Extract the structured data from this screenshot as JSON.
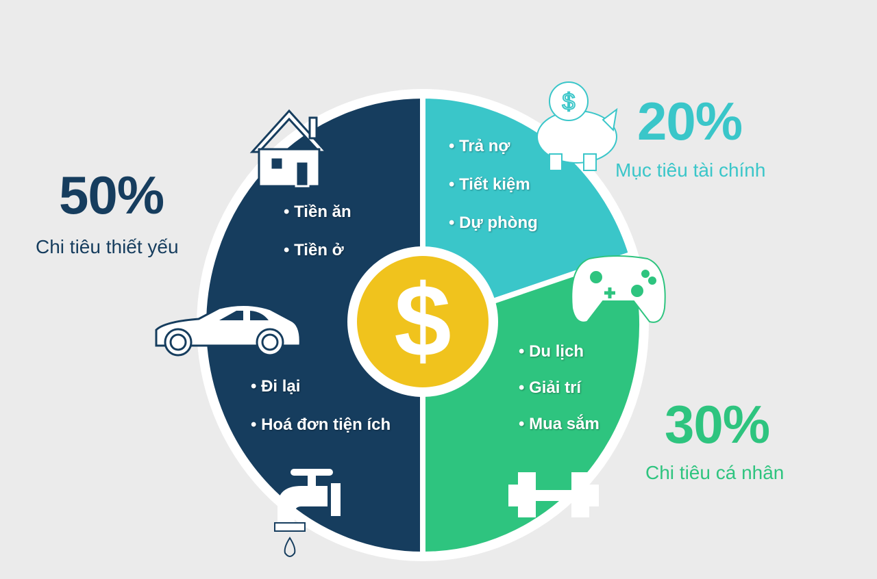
{
  "colors": {
    "background": "#ebebeb",
    "yellow": "#f0c31d",
    "navy": "#163d5e",
    "teal": "#3ac6c9",
    "green": "#2ec47f"
  },
  "chart_data": {
    "type": "pie",
    "start": "top",
    "direction": "clockwise",
    "slices": [
      {
        "label": "Mục tiêu tài chính",
        "value": 20,
        "value_label": "20%",
        "color": "#3ac6c9",
        "items": [
          "Trả nợ",
          "Tiết kiệm",
          "Dự phòng"
        ],
        "icons": [
          "piggy-bank-icon"
        ]
      },
      {
        "label": "Chi tiêu cá nhân",
        "value": 30,
        "value_label": "30%",
        "color": "#2ec47f",
        "items": [
          "Du lịch",
          "Giải trí",
          "Mua sắm"
        ],
        "icons": [
          "gamepad-icon",
          "dumbbell-icon"
        ]
      },
      {
        "label": "Chi tiêu thiết yếu",
        "value": 50,
        "value_label": "50%",
        "color": "#163d5e",
        "items": [
          "Tiền ăn",
          "Tiền ở",
          "Đi lại",
          "Hoá đơn tiện ích"
        ],
        "icons": [
          "house-icon",
          "car-icon",
          "faucet-icon"
        ]
      }
    ],
    "center_icon": "dollar-icon"
  }
}
